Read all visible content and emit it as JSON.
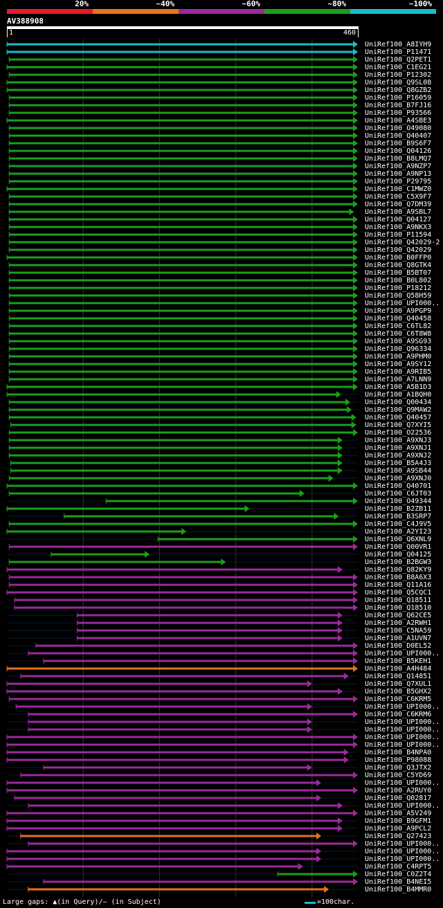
{
  "header": {
    "identity_levels": [
      {
        "label": "20%",
        "color": "#e8192c"
      },
      {
        "label": "~40%",
        "color": "#e8731a"
      },
      {
        "label": "~60%",
        "color": "#9c2a9c"
      },
      {
        "label": "~80%",
        "color": "#1ba01b"
      },
      {
        "label": "~100%",
        "color": "#1bbccc"
      }
    ]
  },
  "query": {
    "name": "AV388908",
    "start_label": "1",
    "end_label": "460"
  },
  "legend": {
    "large_gaps_text": "Large gaps: ▲(in Query)/— (in Subject)",
    "scale_text": "=100char.",
    "scale_color": "#1bbccc"
  },
  "hits": [
    {
      "id": "UniRef100_A8IYH9",
      "color": "#1bbccc",
      "start": 0,
      "end": 460
    },
    {
      "id": "UniRef100_P11471",
      "color": "#1bbccc",
      "start": 0,
      "end": 460
    },
    {
      "id": "UniRef100_Q2PET1",
      "color": "#1ba01b",
      "start": 3,
      "end": 460
    },
    {
      "id": "UniRef100_C1EG21",
      "color": "#1ba01b",
      "start": 0,
      "end": 460
    },
    {
      "id": "UniRef100_P12302",
      "color": "#1ba01b",
      "start": 3,
      "end": 460
    },
    {
      "id": "UniRef100_Q9SL08",
      "color": "#1ba01b",
      "start": 0,
      "end": 460
    },
    {
      "id": "UniRef100_Q8GZB2",
      "color": "#1ba01b",
      "start": 0,
      "end": 460
    },
    {
      "id": "UniRef100_P16059",
      "color": "#1ba01b",
      "start": 3,
      "end": 460
    },
    {
      "id": "UniRef100_B7FJ16",
      "color": "#1ba01b",
      "start": 3,
      "end": 460
    },
    {
      "id": "UniRef100_P93566",
      "color": "#1ba01b",
      "start": 3,
      "end": 460
    },
    {
      "id": "UniRef100_A4SBE3",
      "color": "#1ba01b",
      "start": 0,
      "end": 460
    },
    {
      "id": "UniRef100_O49080",
      "color": "#1ba01b",
      "start": 3,
      "end": 460
    },
    {
      "id": "UniRef100_Q40407",
      "color": "#1ba01b",
      "start": 3,
      "end": 460
    },
    {
      "id": "UniRef100_B9S6F7",
      "color": "#1ba01b",
      "start": 3,
      "end": 460
    },
    {
      "id": "UniRef100_Q04126",
      "color": "#1ba01b",
      "start": 3,
      "end": 460
    },
    {
      "id": "UniRef100_B8LMQ7",
      "color": "#1ba01b",
      "start": 3,
      "end": 460
    },
    {
      "id": "UniRef100_A9NZP7",
      "color": "#1ba01b",
      "start": 3,
      "end": 460
    },
    {
      "id": "UniRef100_A9NP13",
      "color": "#1ba01b",
      "start": 3,
      "end": 460
    },
    {
      "id": "UniRef100_P29795",
      "color": "#1ba01b",
      "start": 3,
      "end": 460
    },
    {
      "id": "UniRef100_C1MWZ0",
      "color": "#1ba01b",
      "start": 0,
      "end": 460
    },
    {
      "id": "UniRef100_C5X9F7",
      "color": "#1ba01b",
      "start": 3,
      "end": 460
    },
    {
      "id": "UniRef100_Q7DM39",
      "color": "#1ba01b",
      "start": 3,
      "end": 460
    },
    {
      "id": "UniRef100_A9SBL7",
      "color": "#1ba01b",
      "start": 3,
      "end": 455
    },
    {
      "id": "UniRef100_Q04127",
      "color": "#1ba01b",
      "start": 3,
      "end": 460
    },
    {
      "id": "UniRef100_A9NKX3",
      "color": "#1ba01b",
      "start": 3,
      "end": 460
    },
    {
      "id": "UniRef100_P11594",
      "color": "#1ba01b",
      "start": 3,
      "end": 460
    },
    {
      "id": "UniRef100_Q42029-2",
      "color": "#1ba01b",
      "start": 3,
      "end": 460
    },
    {
      "id": "UniRef100_Q42029",
      "color": "#1ba01b",
      "start": 3,
      "end": 460
    },
    {
      "id": "UniRef100_B0FFP0",
      "color": "#1ba01b",
      "start": 0,
      "end": 460
    },
    {
      "id": "UniRef100_Q8GTK4",
      "color": "#1ba01b",
      "start": 3,
      "end": 460
    },
    {
      "id": "UniRef100_B5BT07",
      "color": "#1ba01b",
      "start": 3,
      "end": 460
    },
    {
      "id": "UniRef100_B0L802",
      "color": "#1ba01b",
      "start": 3,
      "end": 460
    },
    {
      "id": "UniRef100_P18212",
      "color": "#1ba01b",
      "start": 3,
      "end": 460
    },
    {
      "id": "UniRef100_Q58H59",
      "color": "#1ba01b",
      "start": 3,
      "end": 460
    },
    {
      "id": "UniRef100_UPI000..",
      "color": "#1ba01b",
      "start": 3,
      "end": 460
    },
    {
      "id": "UniRef100_A9PGP9",
      "color": "#1ba01b",
      "start": 3,
      "end": 460
    },
    {
      "id": "UniRef100_Q40458",
      "color": "#1ba01b",
      "start": 3,
      "end": 460
    },
    {
      "id": "UniRef100_C6TL82",
      "color": "#1ba01b",
      "start": 3,
      "end": 460
    },
    {
      "id": "UniRef100_C6T8W8",
      "color": "#1ba01b",
      "start": 3,
      "end": 460
    },
    {
      "id": "UniRef100_A9SG93",
      "color": "#1ba01b",
      "start": 3,
      "end": 460
    },
    {
      "id": "UniRef100_Q96334",
      "color": "#1ba01b",
      "start": 3,
      "end": 460
    },
    {
      "id": "UniRef100_A9PHM0",
      "color": "#1ba01b",
      "start": 3,
      "end": 460
    },
    {
      "id": "UniRef100_A9SY12",
      "color": "#1ba01b",
      "start": 3,
      "end": 460
    },
    {
      "id": "UniRef100_A9RIB5",
      "color": "#1ba01b",
      "start": 3,
      "end": 460
    },
    {
      "id": "UniRef100_A7LNN9",
      "color": "#1ba01b",
      "start": 3,
      "end": 460
    },
    {
      "id": "UniRef100_A5B1D3",
      "color": "#1ba01b",
      "start": 0,
      "end": 460
    },
    {
      "id": "UniRef100_A1BQH0",
      "color": "#1ba01b",
      "start": 0,
      "end": 438
    },
    {
      "id": "UniRef100_Q00434",
      "color": "#1ba01b",
      "start": 3,
      "end": 450
    },
    {
      "id": "UniRef100_Q9MAW2",
      "color": "#1ba01b",
      "start": 3,
      "end": 452
    },
    {
      "id": "UniRef100_Q40457",
      "color": "#1ba01b",
      "start": 3,
      "end": 458
    },
    {
      "id": "UniRef100_Q7XYI5",
      "color": "#1ba01b",
      "start": 5,
      "end": 458
    },
    {
      "id": "UniRef100_O22536",
      "color": "#1ba01b",
      "start": 3,
      "end": 460
    },
    {
      "id": "UniRef100_A9XNJ3",
      "color": "#1ba01b",
      "start": 3,
      "end": 440
    },
    {
      "id": "UniRef100_A9XNJ1",
      "color": "#1ba01b",
      "start": 3,
      "end": 440
    },
    {
      "id": "UniRef100_A9XNJ2",
      "color": "#1ba01b",
      "start": 3,
      "end": 440
    },
    {
      "id": "UniRef100_B5A4J3",
      "color": "#1ba01b",
      "start": 5,
      "end": 440
    },
    {
      "id": "UniRef100_A9SB44",
      "color": "#1ba01b",
      "start": 5,
      "end": 440
    },
    {
      "id": "UniRef100_A9XNJ0",
      "color": "#1ba01b",
      "start": 3,
      "end": 428
    },
    {
      "id": "UniRef100_Q40701",
      "color": "#1ba01b",
      "start": 0,
      "end": 460
    },
    {
      "id": "UniRef100_C6JT03",
      "color": "#1ba01b",
      "start": 3,
      "end": 390
    },
    {
      "id": "UniRef100_O49344",
      "color": "#1ba01b",
      "start": 130,
      "end": 460
    },
    {
      "id": "UniRef100_B2ZB11",
      "color": "#1ba01b",
      "start": 0,
      "end": 318
    },
    {
      "id": "UniRef100_B3SRP7",
      "color": "#1ba01b",
      "start": 75,
      "end": 435
    },
    {
      "id": "UniRef100_C4J9V5",
      "color": "#1ba01b",
      "start": 3,
      "end": 460
    },
    {
      "id": "UniRef100_A2YI23",
      "color": "#1ba01b",
      "start": 0,
      "end": 235
    },
    {
      "id": "UniRef100_Q6XNL9",
      "color": "#1ba01b",
      "start": 198,
      "end": 460
    },
    {
      "id": "UniRef100_Q00VR1",
      "color": "#9c2a9c",
      "start": 3,
      "end": 460
    },
    {
      "id": "UniRef100_Q04125",
      "color": "#1ba01b",
      "start": 58,
      "end": 187
    },
    {
      "id": "UniRef100_B2BGW3",
      "color": "#1ba01b",
      "start": 3,
      "end": 287
    },
    {
      "id": "UniRef100_Q82KY9",
      "color": "#9c2a9c",
      "start": 0,
      "end": 440
    },
    {
      "id": "UniRef100_B8A6X3",
      "color": "#9c2a9c",
      "start": 3,
      "end": 460
    },
    {
      "id": "UniRef100_Q11A16",
      "color": "#9c2a9c",
      "start": 3,
      "end": 460
    },
    {
      "id": "UniRef100_Q5CQC1",
      "color": "#9c2a9c",
      "start": 0,
      "end": 460
    },
    {
      "id": "UniRef100_Q18511",
      "color": "#9c2a9c",
      "start": 10,
      "end": 460
    },
    {
      "id": "UniRef100_Q18510",
      "color": "#9c2a9c",
      "start": 10,
      "end": 460
    },
    {
      "id": "UniRef100_Q62CE5",
      "color": "#9c2a9c",
      "start": 92,
      "end": 440
    },
    {
      "id": "UniRef100_A2RWH1",
      "color": "#9c2a9c",
      "start": 92,
      "end": 440
    },
    {
      "id": "UniRef100_C5NA59",
      "color": "#9c2a9c",
      "start": 92,
      "end": 440
    },
    {
      "id": "UniRef100_A1UVN7",
      "color": "#9c2a9c",
      "start": 92,
      "end": 440
    },
    {
      "id": "UniRef100_D0EL52",
      "color": "#9c2a9c",
      "start": 38,
      "end": 460
    },
    {
      "id": "UniRef100_UPI000..",
      "color": "#9c2a9c",
      "start": 28,
      "end": 460
    },
    {
      "id": "UniRef100_B5KEH1",
      "color": "#9c2a9c",
      "start": 48,
      "end": 460
    },
    {
      "id": "UniRef100_A4H484",
      "color": "#e8731a",
      "start": 0,
      "end": 460
    },
    {
      "id": "UniRef100_Q14851",
      "color": "#9c2a9c",
      "start": 18,
      "end": 448
    },
    {
      "id": "UniRef100_Q7XUL1",
      "color": "#9c2a9c",
      "start": 0,
      "end": 400
    },
    {
      "id": "UniRef100_B5GHX2",
      "color": "#9c2a9c",
      "start": 0,
      "end": 440
    },
    {
      "id": "UniRef100_C6KRM5",
      "color": "#9c2a9c",
      "start": 3,
      "end": 460
    },
    {
      "id": "UniRef100_UPI000..",
      "color": "#9c2a9c",
      "start": 12,
      "end": 400
    },
    {
      "id": "UniRef100_C6KRM6",
      "color": "#9c2a9c",
      "start": 28,
      "end": 460
    },
    {
      "id": "UniRef100_UPI000..",
      "color": "#9c2a9c",
      "start": 28,
      "end": 400
    },
    {
      "id": "UniRef100_UPI000..",
      "color": "#9c2a9c",
      "start": 28,
      "end": 400
    },
    {
      "id": "UniRef100_UPI000..",
      "color": "#9c2a9c",
      "start": 0,
      "end": 460
    },
    {
      "id": "UniRef100_UPI000..",
      "color": "#9c2a9c",
      "start": 0,
      "end": 460
    },
    {
      "id": "UniRef100_B4NPA0",
      "color": "#9c2a9c",
      "start": 0,
      "end": 448
    },
    {
      "id": "UniRef100_P98088",
      "color": "#9c2a9c",
      "start": 0,
      "end": 448
    },
    {
      "id": "UniRef100_Q3JTX2",
      "color": "#9c2a9c",
      "start": 48,
      "end": 400
    },
    {
      "id": "UniRef100_C5YD69",
      "color": "#9c2a9c",
      "start": 18,
      "end": 460
    },
    {
      "id": "UniRef100_UPI000..",
      "color": "#9c2a9c",
      "start": 0,
      "end": 412
    },
    {
      "id": "UniRef100_A2RUY0",
      "color": "#9c2a9c",
      "start": 0,
      "end": 460
    },
    {
      "id": "UniRef100_Q02817",
      "color": "#9c2a9c",
      "start": 10,
      "end": 412
    },
    {
      "id": "UniRef100_UPI000..",
      "color": "#9c2a9c",
      "start": 28,
      "end": 440
    },
    {
      "id": "UniRef100_A5V249",
      "color": "#9c2a9c",
      "start": 0,
      "end": 460
    },
    {
      "id": "UniRef100_B9GFM1",
      "color": "#9c2a9c",
      "start": 0,
      "end": 440
    },
    {
      "id": "UniRef100_A9PCL2",
      "color": "#9c2a9c",
      "start": 0,
      "end": 440
    },
    {
      "id": "UniRef100_Q27423",
      "color": "#e8731a",
      "start": 18,
      "end": 412
    },
    {
      "id": "UniRef100_UPI000..",
      "color": "#9c2a9c",
      "start": 28,
      "end": 460
    },
    {
      "id": "UniRef100_UPI000..",
      "color": "#9c2a9c",
      "start": 0,
      "end": 412
    },
    {
      "id": "UniRef100_UPI000..",
      "color": "#9c2a9c",
      "start": 0,
      "end": 412
    },
    {
      "id": "UniRef100_C4RPT5",
      "color": "#9c2a9c",
      "start": 0,
      "end": 388
    },
    {
      "id": "UniRef100_C0Z2T4",
      "color": "#1ba01b",
      "start": 355,
      "end": 460
    },
    {
      "id": "UniRef100_B4NEI5",
      "color": "#9c2a9c",
      "start": 48,
      "end": 460
    },
    {
      "id": "UniRef100_B4MMR0",
      "color": "#e8731a",
      "start": 28,
      "end": 422
    }
  ]
}
